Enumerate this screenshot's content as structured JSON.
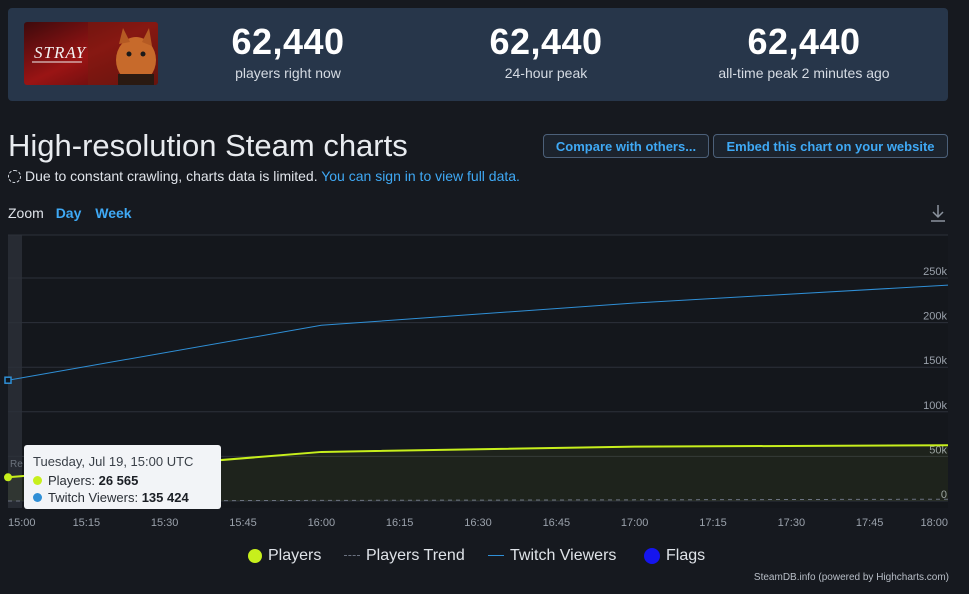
{
  "header": {
    "game_logo_text": "STRAY",
    "stats": [
      {
        "value": "62,440",
        "label": "players right now"
      },
      {
        "value": "62,440",
        "label": "24-hour peak"
      },
      {
        "value": "62,440",
        "label": "all-time peak 2 minutes ago"
      }
    ]
  },
  "page_title": "High-resolution Steam charts",
  "buttons": {
    "compare": "Compare with others...",
    "embed": "Embed this chart on your website"
  },
  "notice": {
    "text": "Due to constant crawling, charts data is limited.",
    "link": "You can sign in to view full data."
  },
  "zoom": {
    "label": "Zoom",
    "options": [
      "Day",
      "Week"
    ]
  },
  "icons": {
    "download": "download-icon",
    "dashed-circle": "dashed-circle-icon"
  },
  "colors": {
    "players": "#c7ef1c",
    "twitch": "#2f8fd6",
    "flags": "#1515ee",
    "trend": "#6b7280"
  },
  "tooltip": {
    "title": "Tuesday, Jul 19, 15:00 UTC",
    "players_label": "Players:",
    "players_value": "26 565",
    "twitch_label": "Twitch Viewers:",
    "twitch_value": "135 424"
  },
  "credit": "SteamDB.info (powered by Highcharts.com)",
  "chart_data": {
    "type": "line",
    "x_labels": [
      "15:00",
      "15:15",
      "15:30",
      "15:45",
      "16:00",
      "16:15",
      "16:30",
      "16:45",
      "17:00",
      "17:15",
      "17:30",
      "17:45",
      "18:00"
    ],
    "y_ticks": [
      "0",
      "50k",
      "100k",
      "150k",
      "200k",
      "250k"
    ],
    "ylim": [
      0,
      250000
    ],
    "xlim": [
      "15:00",
      "18:00"
    ],
    "grid": true,
    "legend_position": "bottom",
    "series": [
      {
        "name": "Players",
        "x": [
          "15:00",
          "16:00",
          "17:00",
          "18:00"
        ],
        "values": [
          26565,
          55000,
          61000,
          62440
        ]
      },
      {
        "name": "Players Trend",
        "x": [
          "15:00",
          "18:00"
        ],
        "values": [
          0,
          2000
        ]
      },
      {
        "name": "Twitch Viewers",
        "x": [
          "15:00",
          "16:00",
          "17:00",
          "18:00"
        ],
        "values": [
          135424,
          197000,
          222000,
          242000
        ]
      },
      {
        "name": "Flags",
        "x": [],
        "values": []
      }
    ],
    "legend": [
      "Players",
      "Players Trend",
      "Twitch Viewers",
      "Flags"
    ],
    "annotation": "Re"
  }
}
